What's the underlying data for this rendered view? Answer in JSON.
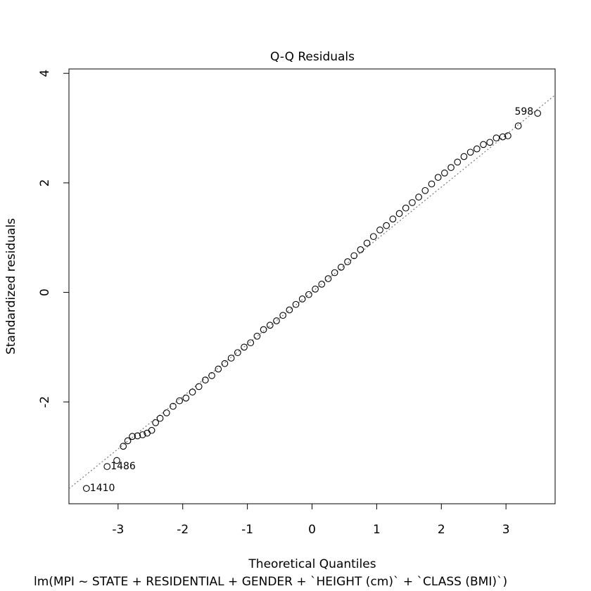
{
  "chart_data": {
    "type": "qq",
    "title": "Q-Q Residuals",
    "x_label": "Theoretical Quantiles",
    "y_label": "Standardized residuals",
    "caption": "lm(MPI ~ STATE + RESIDENTIAL + GENDER + `HEIGHT (cm)` + `CLASS (BMI)`)",
    "x": [
      -3.49,
      -3.17,
      -3.02,
      -2.92,
      -2.85,
      -2.78,
      -2.7,
      -2.62,
      -2.55,
      -2.48,
      -2.42,
      -2.35,
      -2.25,
      -2.15,
      -2.05,
      -1.95,
      -1.85,
      -1.75,
      -1.65,
      -1.55,
      -1.45,
      -1.35,
      -1.25,
      -1.15,
      -1.05,
      -0.95,
      -0.85,
      -0.75,
      -0.65,
      -0.55,
      -0.45,
      -0.35,
      -0.25,
      -0.15,
      -0.05,
      0.05,
      0.15,
      0.25,
      0.35,
      0.45,
      0.55,
      0.65,
      0.75,
      0.85,
      0.95,
      1.05,
      1.15,
      1.25,
      1.35,
      1.45,
      1.55,
      1.65,
      1.75,
      1.85,
      1.95,
      2.05,
      2.15,
      2.25,
      2.35,
      2.45,
      2.55,
      2.65,
      2.75,
      2.85,
      2.95,
      3.03,
      3.19,
      3.49
    ],
    "values": [
      -3.58,
      -3.18,
      -3.07,
      -2.81,
      -2.71,
      -2.63,
      -2.62,
      -2.6,
      -2.57,
      -2.52,
      -2.38,
      -2.3,
      -2.2,
      -2.08,
      -1.98,
      -1.93,
      -1.82,
      -1.72,
      -1.6,
      -1.52,
      -1.4,
      -1.3,
      -1.2,
      -1.1,
      -1.0,
      -0.92,
      -0.8,
      -0.68,
      -0.6,
      -0.52,
      -0.42,
      -0.32,
      -0.22,
      -0.12,
      -0.04,
      0.06,
      0.15,
      0.25,
      0.36,
      0.46,
      0.56,
      0.67,
      0.78,
      0.9,
      1.02,
      1.14,
      1.22,
      1.34,
      1.44,
      1.54,
      1.64,
      1.74,
      1.86,
      1.98,
      2.1,
      2.18,
      2.28,
      2.38,
      2.48,
      2.56,
      2.62,
      2.7,
      2.74,
      2.82,
      2.84,
      2.86,
      3.04,
      3.27
    ],
    "labels": [
      "1410",
      "1486",
      null,
      null,
      null,
      null,
      null,
      null,
      null,
      null,
      null,
      null,
      null,
      null,
      null,
      null,
      null,
      null,
      null,
      null,
      null,
      null,
      null,
      null,
      null,
      null,
      null,
      null,
      null,
      null,
      null,
      null,
      null,
      null,
      null,
      null,
      null,
      null,
      null,
      null,
      null,
      null,
      null,
      null,
      null,
      null,
      null,
      null,
      null,
      null,
      null,
      null,
      null,
      null,
      null,
      null,
      null,
      null,
      null,
      null,
      null,
      null,
      null,
      null,
      null,
      null,
      null,
      "598"
    ],
    "reference_line": {
      "intercept": 0.01,
      "slope": 0.956
    },
    "color": "#000000",
    "xlim": [
      -3.76,
      3.76
    ],
    "ylim": [
      -3.86,
      4.08
    ],
    "xticks": [
      -3,
      -2,
      -1,
      0,
      1,
      2,
      3
    ],
    "yticks": [
      -2,
      0,
      2,
      4
    ]
  }
}
